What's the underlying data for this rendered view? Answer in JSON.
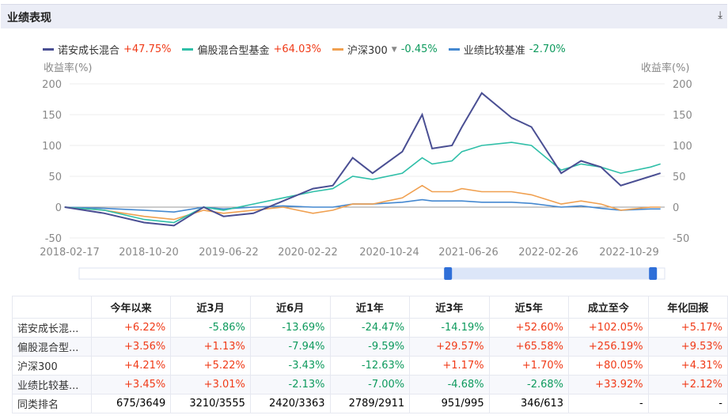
{
  "header": {
    "title": "业绩表现",
    "download_icon": "download-icon"
  },
  "legend": [
    {
      "name": "诺安成长混合",
      "value": "+47.75%",
      "color": "#4a4f93",
      "dir": "up"
    },
    {
      "name": "偏股混合型基金",
      "value": "+64.03%",
      "color": "#2fbfa8",
      "dir": "up"
    },
    {
      "name": "沪深300",
      "value": "-0.45%",
      "color": "#f0a050",
      "dir": "down",
      "dropdown": "▼"
    },
    {
      "name": "业绩比较基准",
      "value": "-2.70%",
      "color": "#4488d0",
      "dir": "down"
    }
  ],
  "chart_data": {
    "type": "line",
    "ylabel_left": "收益率(%)",
    "ylabel_right": "收益率(%)",
    "ylim": [
      -50,
      200
    ],
    "yticks": [
      "200",
      "150",
      "100",
      "50",
      "0",
      "-50"
    ],
    "xticks": [
      "2018-02-17",
      "2018-10-20",
      "2019-06-22",
      "2020-02-22",
      "2020-10-24",
      "2021-06-26",
      "2022-02-26",
      "2022-10-29"
    ],
    "x": [
      "2018-02",
      "2018-06",
      "2018-10",
      "2019-01",
      "2019-04",
      "2019-06",
      "2019-09",
      "2019-12",
      "2020-03",
      "2020-05",
      "2020-07",
      "2020-09",
      "2020-12",
      "2021-02",
      "2021-03",
      "2021-05",
      "2021-06",
      "2021-08",
      "2021-11",
      "2022-01",
      "2022-04",
      "2022-06",
      "2022-08",
      "2022-10",
      "2023-01",
      "2023-02"
    ],
    "series": [
      {
        "name": "诺安成长混合",
        "values": [
          0,
          -10,
          -25,
          -30,
          0,
          -15,
          -10,
          10,
          30,
          35,
          80,
          55,
          90,
          150,
          95,
          100,
          130,
          185,
          145,
          130,
          55,
          75,
          65,
          35,
          50,
          55
        ]
      },
      {
        "name": "偏股混合型基金",
        "values": [
          0,
          -5,
          -20,
          -25,
          0,
          -5,
          5,
          15,
          25,
          30,
          50,
          45,
          55,
          80,
          70,
          75,
          90,
          100,
          105,
          100,
          60,
          70,
          65,
          55,
          65,
          70
        ]
      },
      {
        "name": "沪深300",
        "values": [
          0,
          -5,
          -15,
          -20,
          -5,
          -10,
          -5,
          0,
          -10,
          -5,
          5,
          5,
          15,
          35,
          25,
          25,
          30,
          25,
          25,
          20,
          5,
          10,
          5,
          -5,
          0,
          0
        ]
      },
      {
        "name": "业绩比较基准",
        "values": [
          0,
          -2,
          -5,
          -8,
          0,
          -3,
          0,
          2,
          0,
          0,
          5,
          5,
          8,
          12,
          10,
          10,
          10,
          8,
          8,
          6,
          0,
          2,
          -2,
          -5,
          -3,
          -3
        ]
      }
    ],
    "range_selector": {
      "start_fraction": 0.63,
      "end_fraction": 0.98
    }
  },
  "table": {
    "headers": [
      "",
      "今年以来",
      "近3月",
      "近6月",
      "近1年",
      "近3年",
      "近5年",
      "成立至今",
      "年化回报"
    ],
    "rows": [
      [
        "诺安成长混...",
        "+6.22%",
        "-5.86%",
        "-13.69%",
        "-24.47%",
        "-14.19%",
        "+52.60%",
        "+102.05%",
        "+5.17%"
      ],
      [
        "偏股混合型...",
        "+3.56%",
        "+1.13%",
        "-7.94%",
        "-9.59%",
        "+29.57%",
        "+65.58%",
        "+256.19%",
        "+9.53%"
      ],
      [
        "沪深300",
        "+4.21%",
        "+5.22%",
        "-3.43%",
        "-12.63%",
        "+1.17%",
        "+1.70%",
        "+80.05%",
        "+4.31%"
      ],
      [
        "业绩比较基...",
        "+3.45%",
        "+3.01%",
        "-2.13%",
        "-7.00%",
        "-4.68%",
        "-2.68%",
        "+33.92%",
        "+2.12%"
      ],
      [
        "同类排名",
        "675/3649",
        "3210/3555",
        "2420/3363",
        "2789/2911",
        "951/995",
        "346/613",
        "-",
        "-"
      ]
    ]
  }
}
